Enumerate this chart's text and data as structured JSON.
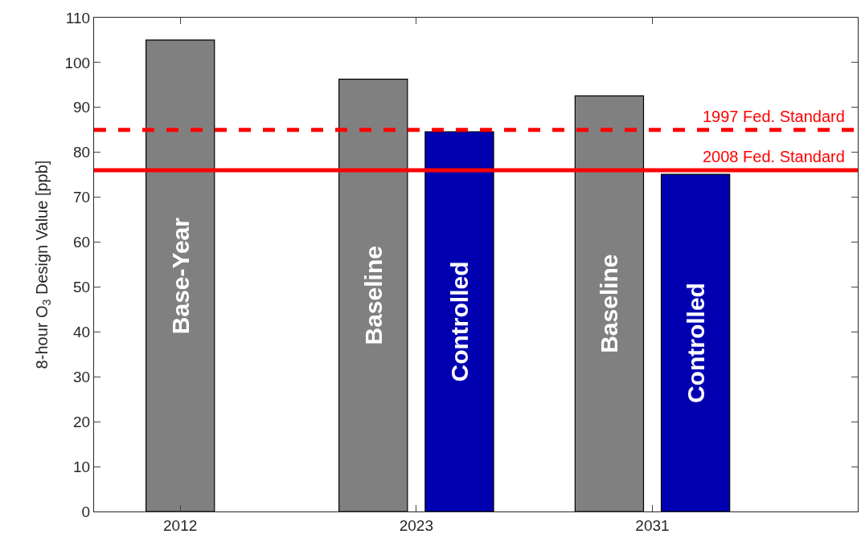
{
  "chart_data": {
    "type": "bar",
    "ylabel": "8-hour O$_{3}$ Design Value [ppb]",
    "categories": [
      "2012",
      "2023",
      "2031"
    ],
    "series": [
      {
        "name": "Base-Year",
        "color": "#808080",
        "values": [
          105,
          null,
          null
        ]
      },
      {
        "name": "Baseline",
        "color": "#808080",
        "values": [
          null,
          96.3,
          92.6
        ]
      },
      {
        "name": "Controlled",
        "color": "#0000b0",
        "values": [
          null,
          84.6,
          75.1
        ]
      }
    ],
    "ylim": [
      0,
      110
    ],
    "yticks": [
      0,
      10,
      20,
      30,
      40,
      50,
      60,
      70,
      80,
      90,
      100,
      110
    ],
    "legend": false,
    "ref_lines": [
      {
        "axis": "y",
        "value": 85,
        "label": "1997 Fed. Standard",
        "color": "#ff0000",
        "line_style": "dashed"
      },
      {
        "axis": "y",
        "value": 76,
        "label": "2008 Fed. Standard",
        "color": "#ff0000",
        "line_style": "solid"
      }
    ]
  }
}
